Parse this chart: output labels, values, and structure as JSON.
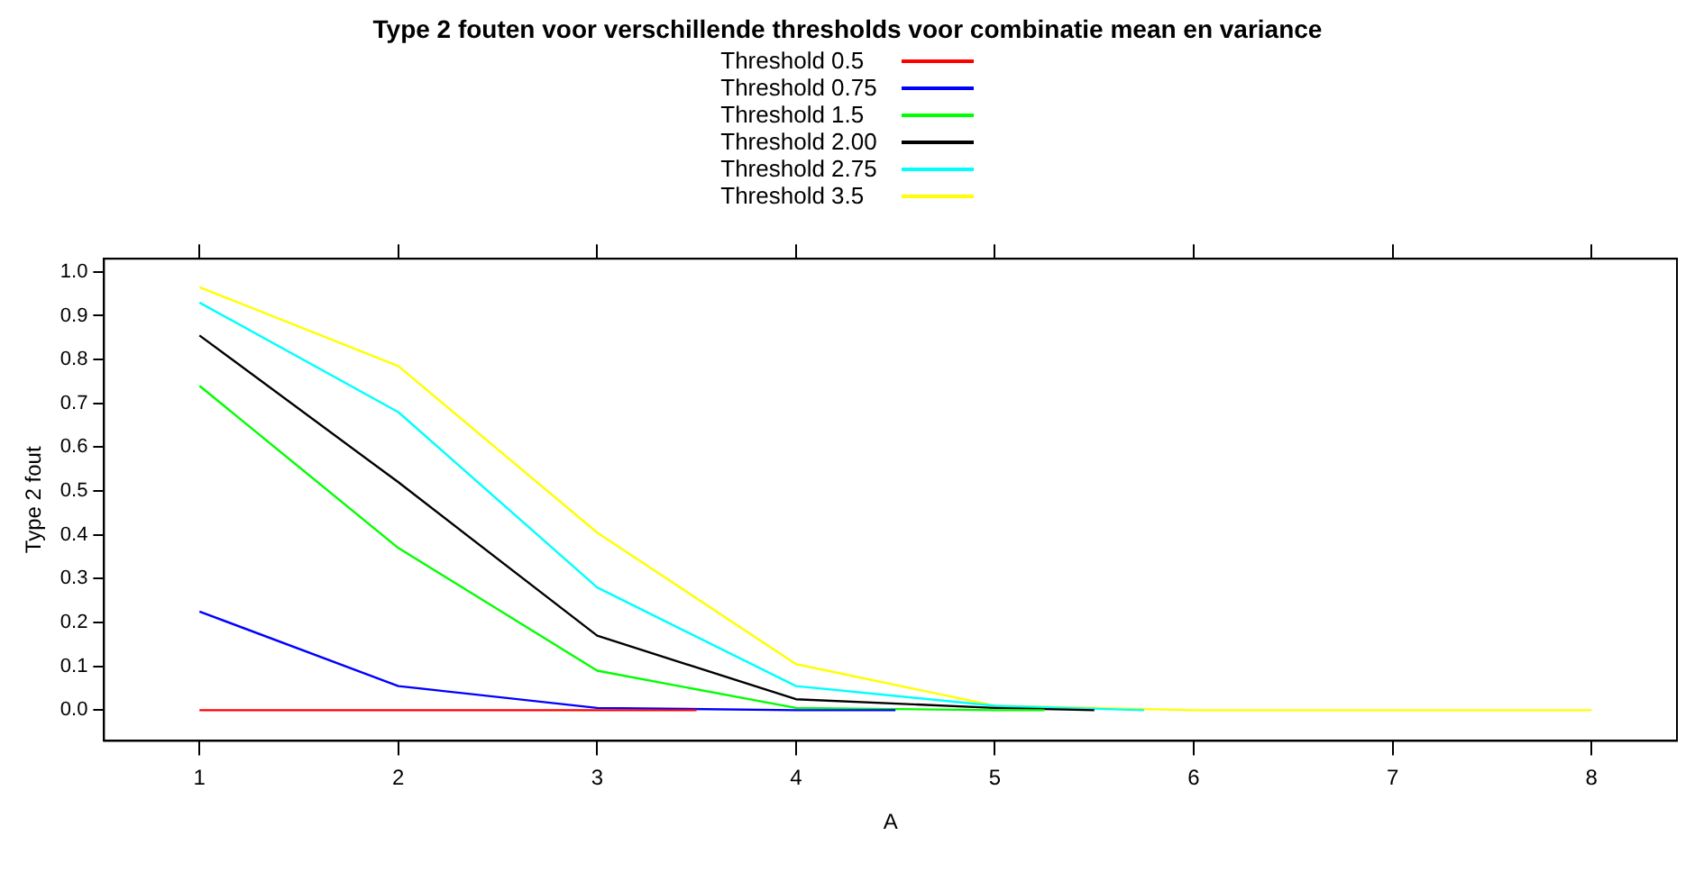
{
  "chart_data": {
    "type": "line",
    "title": "Type 2 fouten voor verschillende thresholds voor combinatie mean en variance",
    "xlabel": "A",
    "ylabel": "Type 2 fout",
    "xlim": [
      0.52,
      8.43
    ],
    "xticks": [
      1,
      2,
      3,
      4,
      5,
      6,
      7,
      8
    ],
    "ylim": [
      -0.07,
      1.03
    ],
    "yticks": [
      {
        "value": 0,
        "label": "0.0"
      },
      0.1,
      0.2,
      0.3,
      0.4,
      0.5,
      0.6,
      0.7,
      0.8,
      0.9,
      {
        "value": 1,
        "label": "1.0"
      }
    ],
    "grid": false,
    "legend": "top",
    "marker": "none",
    "line_style": "solid",
    "series": [
      {
        "name": "Threshold 0.5",
        "color": "#ff0000",
        "x": [
          1,
          2,
          3,
          3.5
        ],
        "values": [
          0,
          0,
          0,
          0
        ]
      },
      {
        "name": "Threshold 0.75",
        "color": "#0000ff",
        "x": [
          1,
          2,
          3,
          4,
          4.5
        ],
        "values": [
          0.225,
          0.055,
          0.005,
          0,
          0
        ]
      },
      {
        "name": "Threshold 1.5",
        "color": "#00ff00",
        "x": [
          1,
          2,
          3,
          4,
          5,
          5.25
        ],
        "values": [
          0.74,
          0.37,
          0.09,
          0.005,
          0,
          0
        ]
      },
      {
        "name": "Threshold 2.00",
        "color": "#000000",
        "x": [
          1,
          2,
          3,
          4,
          5,
          5.5
        ],
        "values": [
          0.855,
          0.52,
          0.17,
          0.025,
          0.005,
          0
        ]
      },
      {
        "name": "Threshold 2.75",
        "color": "#00ffff",
        "x": [
          1,
          2,
          3,
          4,
          5,
          5.75
        ],
        "values": [
          0.93,
          0.68,
          0.28,
          0.055,
          0.01,
          0
        ]
      },
      {
        "name": "Threshold 3.5",
        "color": "#ffff00",
        "x": [
          1,
          2,
          3,
          4,
          5,
          6,
          7,
          8
        ],
        "values": [
          0.965,
          0.785,
          0.405,
          0.105,
          0.01,
          0,
          0,
          0
        ]
      }
    ]
  }
}
